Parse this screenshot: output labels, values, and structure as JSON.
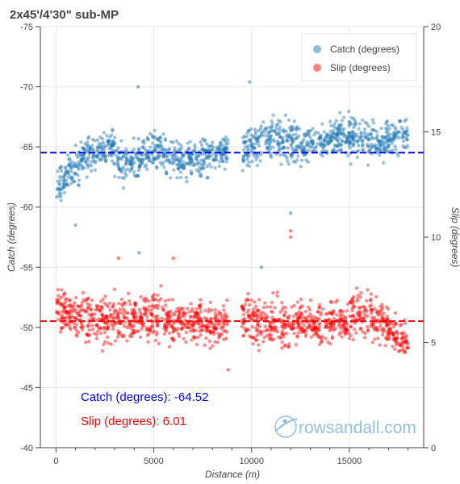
{
  "chart_data": {
    "type": "scatter",
    "title": "2x45'/4'30\" sub-MP",
    "xlabel": "Distance (m)",
    "ylabel_left": "Catch (degrees)",
    "ylabel_right": "Slip (degrees)",
    "xlim": [
      -800,
      18800
    ],
    "ylim_left": [
      -75,
      -40
    ],
    "ylim_left_reversed": true,
    "ylim_right": [
      0,
      20
    ],
    "x_ticks": [
      "0",
      "5000",
      "10000",
      "15000"
    ],
    "y_left_ticks": [
      "-75",
      "-70",
      "-65",
      "-60",
      "-55",
      "-50",
      "-45",
      "-40"
    ],
    "y_right_ticks": [
      "0",
      "5",
      "10",
      "15",
      "20"
    ],
    "grid": true,
    "legend_position": "top-right",
    "series": [
      {
        "name": "Catch (degrees)",
        "axis": "left",
        "color": "#1f77b4",
        "mean": -64.52,
        "mean_line_color": "#0000ff",
        "x_range": [
          0,
          18000
        ],
        "outliers": [
          [
            4200,
            -70.0
          ],
          [
            9900,
            -70.4
          ],
          [
            4250,
            -56.2
          ],
          [
            10500,
            -55.0
          ],
          [
            1000,
            -58.5
          ],
          [
            12000,
            -59.5
          ]
        ],
        "segments": [
          {
            "x": [
              0,
              800
            ],
            "y": [
              -61.8,
              -63.0
            ],
            "spread": 1.2
          },
          {
            "x": [
              800,
              1600
            ],
            "y": [
              -63.0,
              -64.3
            ],
            "spread": 1.3
          },
          {
            "x": [
              1600,
              3000
            ],
            "y": [
              -64.3,
              -65.0
            ],
            "spread": 1.1
          },
          {
            "x": [
              3000,
              4300
            ],
            "y": [
              -64.0,
              -63.5
            ],
            "spread": 1.4
          },
          {
            "x": [
              4300,
              5500
            ],
            "y": [
              -64.2,
              -65.0
            ],
            "spread": 1.3
          },
          {
            "x": [
              5500,
              7000
            ],
            "y": [
              -64.5,
              -63.8
            ],
            "spread": 1.3
          },
          {
            "x": [
              7000,
              8800
            ],
            "y": [
              -64.0,
              -64.6
            ],
            "spread": 1.2
          },
          {
            "x": [
              9500,
              11000
            ],
            "y": [
              -64.8,
              -65.6
            ],
            "spread": 1.2
          },
          {
            "x": [
              11000,
              12500
            ],
            "y": [
              -65.8,
              -65.2
            ],
            "spread": 1.5
          },
          {
            "x": [
              12500,
              14500
            ],
            "y": [
              -65.0,
              -65.8
            ],
            "spread": 1.2
          },
          {
            "x": [
              14500,
              16500
            ],
            "y": [
              -66.0,
              -65.5
            ],
            "spread": 1.3
          },
          {
            "x": [
              16500,
              18000
            ],
            "y": [
              -65.2,
              -66.2
            ],
            "spread": 1.1
          }
        ]
      },
      {
        "name": "Slip (degrees)",
        "axis": "right",
        "color": "#ff0000",
        "mean": 6.01,
        "mean_line_color": "#ff0000",
        "x_range": [
          0,
          18000
        ],
        "outliers": [
          [
            12000,
            10.3
          ],
          [
            12000,
            10.0
          ],
          [
            8800,
            3.7
          ],
          [
            6000,
            9.0
          ],
          [
            3200,
            9.0
          ]
        ],
        "segments": [
          {
            "x": [
              0,
              2000
            ],
            "y": [
              6.5,
              6.2
            ],
            "spread": 0.9
          },
          {
            "x": [
              2000,
              4000
            ],
            "y": [
              6.0,
              6.0
            ],
            "spread": 0.9
          },
          {
            "x": [
              4000,
              6000
            ],
            "y": [
              6.3,
              6.1
            ],
            "spread": 0.9
          },
          {
            "x": [
              6000,
              8800
            ],
            "y": [
              6.0,
              5.9
            ],
            "spread": 0.8
          },
          {
            "x": [
              9500,
              12000
            ],
            "y": [
              6.2,
              5.7
            ],
            "spread": 0.9
          },
          {
            "x": [
              12000,
              15000
            ],
            "y": [
              6.0,
              5.9
            ],
            "spread": 0.8
          },
          {
            "x": [
              15000,
              17000
            ],
            "y": [
              6.3,
              6.0
            ],
            "spread": 0.9
          },
          {
            "x": [
              17000,
              18000
            ],
            "y": [
              5.5,
              5.0
            ],
            "spread": 0.6
          }
        ]
      }
    ],
    "annotations": [
      {
        "text": "Catch (degrees): -64.52",
        "color": "#0000ff"
      },
      {
        "text": "Slip (degrees): 6.01",
        "color": "#ff0000"
      }
    ]
  },
  "watermark": {
    "text": "rowsandall.com",
    "color": "#7fb6d9"
  }
}
